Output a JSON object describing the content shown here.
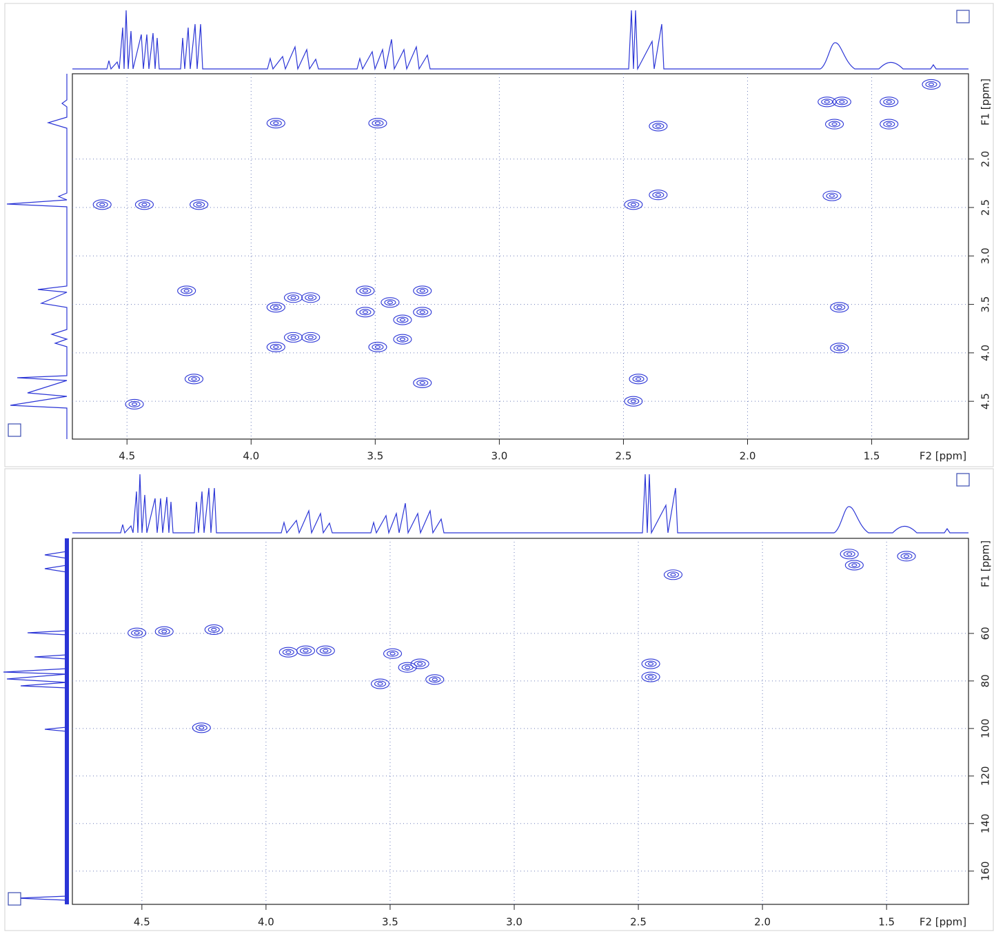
{
  "chart_data": [
    {
      "type": "scatter",
      "x_label": "F2 [ppm]",
      "y_label": "F1 [ppm]",
      "color": "#2b35d6",
      "grid": true,
      "xlim": [
        4.72,
        1.11
      ],
      "ylim": [
        1.12,
        4.89
      ],
      "xticks": [
        4.5,
        {
          "value": 4,
          "label": "4.0"
        },
        3.5,
        {
          "value": 3,
          "label": "3.0"
        },
        2.5,
        {
          "value": 2,
          "label": "2.0"
        },
        1.5
      ],
      "yticks": [
        {
          "value": 2,
          "label": "2.0"
        },
        2.5,
        {
          "value": 3,
          "label": "3.0"
        },
        3.5,
        {
          "value": 4,
          "label": "4.0"
        },
        4.5
      ],
      "x": [
        1.26,
        1.68,
        1.62,
        1.43,
        3.9,
        3.49,
        2.36,
        1.65,
        1.43,
        4.6,
        4.43,
        4.21,
        2.46,
        2.36,
        1.66,
        4.26,
        3.9,
        3.83,
        3.76,
        3.54,
        3.44,
        3.31,
        3.31,
        3.54,
        3.39,
        3.39,
        3.83,
        3.76,
        3.9,
        3.49,
        1.63,
        1.63,
        4.23,
        3.31,
        2.44,
        2.46,
        4.47
      ],
      "values": [
        1.23,
        1.41,
        1.41,
        1.41,
        1.63,
        1.63,
        1.66,
        1.64,
        1.64,
        2.47,
        2.47,
        2.47,
        2.47,
        2.37,
        2.38,
        3.36,
        3.53,
        3.43,
        3.43,
        3.36,
        3.48,
        3.36,
        3.58,
        3.58,
        3.66,
        3.86,
        3.84,
        3.84,
        3.94,
        3.94,
        3.53,
        3.95,
        4.27,
        4.31,
        4.27,
        4.5,
        4.53
      ]
    },
    {
      "type": "scatter",
      "x_label": "F2 [ppm]",
      "y_label": "F1 [ppm]",
      "color": "#2b35d6",
      "grid": true,
      "xlim": [
        4.78,
        1.17
      ],
      "ylim": [
        20,
        174
      ],
      "xticks": [
        4.5,
        {
          "value": 4,
          "label": "4.0"
        },
        3.5,
        {
          "value": 3,
          "label": "3.0"
        },
        2.5,
        {
          "value": 2,
          "label": "2.0"
        },
        1.5
      ],
      "yticks": [
        60,
        80,
        100,
        120,
        140,
        160
      ],
      "x": [
        1.65,
        1.63,
        1.42,
        2.36,
        4.52,
        4.41,
        4.21,
        3.91,
        3.84,
        3.76,
        3.49,
        3.43,
        3.38,
        3.32,
        3.54,
        2.45,
        2.45,
        4.26
      ],
      "values": [
        26.6,
        31.3,
        27.5,
        35.3,
        59.8,
        59.2,
        58.4,
        67.9,
        67.3,
        67.3,
        68.5,
        74.3,
        72.8,
        79.4,
        81.2,
        72.8,
        78.3,
        99.7
      ]
    }
  ]
}
